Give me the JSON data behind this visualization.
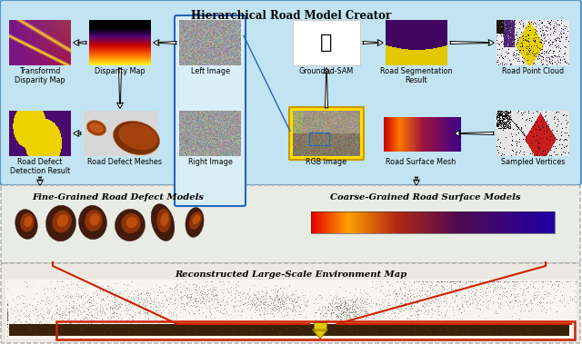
{
  "title_main": "Hierarchical Road Model Creator",
  "title_middle_left": "Fine-Grained Road Defect Models",
  "title_middle_right": "Coarse-Grained Road Surface Models",
  "title_bottom": "Reconstructed Large-Scale Environment Map",
  "labels": [
    [
      "Transformd\nDisparity Map",
      "Disparity Map",
      "Left Image",
      "Grounded-SAM",
      "Road Segmentation\nResult",
      "Road Point Cloud"
    ],
    [
      "Road Defect\nDetection Result",
      "Road Defect Meshes",
      "Right Image",
      "RGB Image",
      "Road Surface Mesh",
      "Sampled Vertices"
    ]
  ],
  "figsize": [
    6.4,
    3.79
  ],
  "dpi": 100,
  "top_bg": "#c2e4f2",
  "top_border": "#5599cc",
  "mid_bg": "#e8ece5",
  "bot_bg": "#ede9e2",
  "blue_box_color": "#2266bb",
  "yellow_box_color": "#ddbb00",
  "red_line_color": "#cc2200"
}
